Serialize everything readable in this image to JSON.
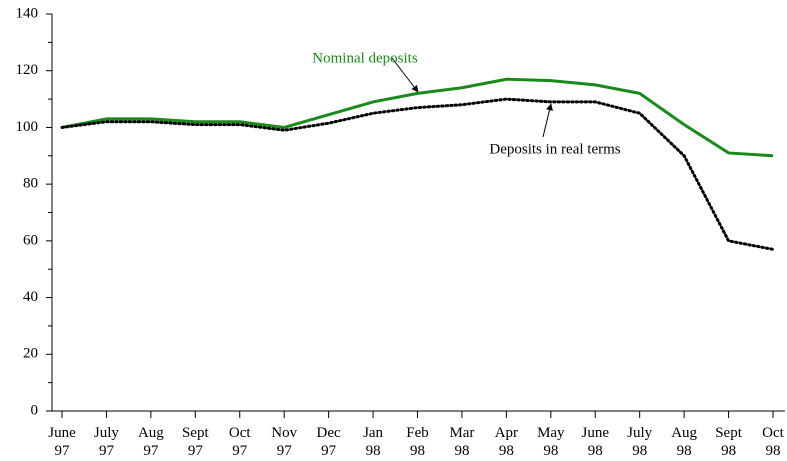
{
  "chart_data": {
    "type": "line",
    "categories": [
      "June\n97",
      "July\n97",
      "Aug\n97",
      "Sept\n97",
      "Oct\n97",
      "Nov\n97",
      "Dec\n97",
      "Jan\n98",
      "Feb\n98",
      "Mar\n98",
      "Apr\n98",
      "May\n98",
      "June\n98",
      "July\n98",
      "Aug\n98",
      "Sept\n98",
      "Oct\n98"
    ],
    "series": [
      {
        "name": "Nominal deposits",
        "color": "#1a8a1a",
        "style": "solid",
        "values": [
          100,
          103,
          103,
          102,
          102,
          100,
          104.5,
          109,
          112,
          114,
          117,
          116.5,
          115,
          112,
          101,
          91,
          90
        ]
      },
      {
        "name": "Deposits in real terms",
        "color": "#000000",
        "style": "dotted",
        "values": [
          100,
          102,
          102,
          101,
          101,
          99,
          101.5,
          105,
          107,
          108,
          110,
          109,
          109,
          105,
          90,
          60,
          57
        ]
      }
    ],
    "ylim": [
      0,
      140
    ],
    "yticks": [
      0,
      20,
      40,
      60,
      80,
      100,
      120,
      140
    ],
    "yminorticks": [
      10,
      30,
      50,
      70,
      90,
      110,
      130
    ]
  }
}
